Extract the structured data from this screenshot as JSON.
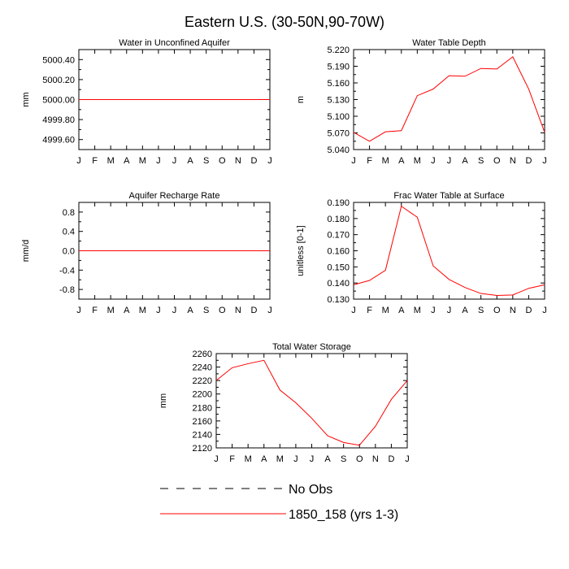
{
  "figure": {
    "title": "Eastern U.S. (30-50N,90-70W)"
  },
  "months": [
    "J",
    "F",
    "M",
    "A",
    "M",
    "J",
    "J",
    "A",
    "S",
    "O",
    "N",
    "D",
    "J"
  ],
  "legend": {
    "obs_label": "No Obs",
    "model_label": "1850_158 (yrs 1-3)",
    "model_color": "#ff0000",
    "obs_color": "#000000"
  },
  "chart_data": [
    {
      "id": "aquifer",
      "type": "line",
      "title": "Water in Unconfined Aquifer",
      "ylabel": "mm",
      "ylim": [
        4999.5,
        5000.5
      ],
      "yticks": [
        4999.6,
        4999.8,
        5000.0,
        5000.2,
        5000.4
      ],
      "ytick_labels": [
        "4999.60",
        "4999.80",
        "5000.00",
        "5000.20",
        "5000.40"
      ],
      "x": [
        1,
        2,
        3,
        4,
        5,
        6,
        7,
        8,
        9,
        10,
        11,
        12,
        13
      ],
      "series": [
        {
          "values": [
            5000,
            5000,
            5000,
            5000,
            5000,
            5000,
            5000,
            5000,
            5000,
            5000,
            5000,
            5000,
            5000
          ]
        }
      ]
    },
    {
      "id": "wtd",
      "type": "line",
      "title": "Water Table Depth",
      "ylabel": "m",
      "ylim": [
        5.04,
        5.22
      ],
      "yticks": [
        5.04,
        5.07,
        5.1,
        5.13,
        5.16,
        5.19,
        5.22
      ],
      "ytick_labels": [
        "5.040",
        "5.070",
        "5.100",
        "5.130",
        "5.160",
        "5.190",
        "5.220"
      ],
      "x": [
        1,
        2,
        3,
        4,
        5,
        6,
        7,
        8,
        9,
        10,
        11,
        12,
        13
      ],
      "series": [
        {
          "values": [
            5.071,
            5.055,
            5.072,
            5.074,
            5.137,
            5.149,
            5.173,
            5.172,
            5.186,
            5.185,
            5.207,
            5.149,
            5.071
          ]
        }
      ]
    },
    {
      "id": "recharge",
      "type": "line",
      "title": "Aquifer Recharge Rate",
      "ylabel": "mm/d",
      "ylim": [
        -1.0,
        1.0
      ],
      "yticks": [
        -0.8,
        -0.4,
        0.0,
        0.4,
        0.8
      ],
      "ytick_labels": [
        "-0.8",
        "-0.4",
        "0.0",
        "0.4",
        "0.8"
      ],
      "x": [
        1,
        2,
        3,
        4,
        5,
        6,
        7,
        8,
        9,
        10,
        11,
        12,
        13
      ],
      "series": [
        {
          "values": [
            0,
            0,
            0,
            0,
            0,
            0,
            0,
            0,
            0,
            0,
            0,
            0,
            0
          ]
        }
      ]
    },
    {
      "id": "frac",
      "type": "line",
      "title": "Frac Water Table at Surface",
      "ylabel": "unitless [0-1]",
      "ylim": [
        0.13,
        0.19
      ],
      "yticks": [
        0.13,
        0.14,
        0.15,
        0.16,
        0.17,
        0.18,
        0.19
      ],
      "ytick_labels": [
        "0.130",
        "0.140",
        "0.150",
        "0.160",
        "0.170",
        "0.180",
        "0.190"
      ],
      "x": [
        1,
        2,
        3,
        4,
        5,
        6,
        7,
        8,
        9,
        10,
        11,
        12,
        13
      ],
      "series": [
        {
          "values": [
            0.1389,
            0.1416,
            0.1479,
            0.1876,
            0.1808,
            0.1506,
            0.1422,
            0.1372,
            0.1335,
            0.1323,
            0.1326,
            0.1367,
            0.1389
          ]
        }
      ]
    },
    {
      "id": "tws",
      "type": "line",
      "title": "Total Water Storage",
      "ylabel": "mm",
      "ylim": [
        2120,
        2260
      ],
      "yticks": [
        2120,
        2140,
        2160,
        2180,
        2200,
        2220,
        2240,
        2260
      ],
      "ytick_labels": [
        "2120",
        "2140",
        "2160",
        "2180",
        "2200",
        "2220",
        "2240",
        "2260"
      ],
      "x": [
        1,
        2,
        3,
        4,
        5,
        6,
        7,
        8,
        9,
        10,
        11,
        12,
        13
      ],
      "series": [
        {
          "values": [
            2220,
            2239,
            2245,
            2250,
            2206,
            2187,
            2164,
            2138,
            2128,
            2124,
            2152,
            2192,
            2220
          ]
        }
      ]
    }
  ]
}
